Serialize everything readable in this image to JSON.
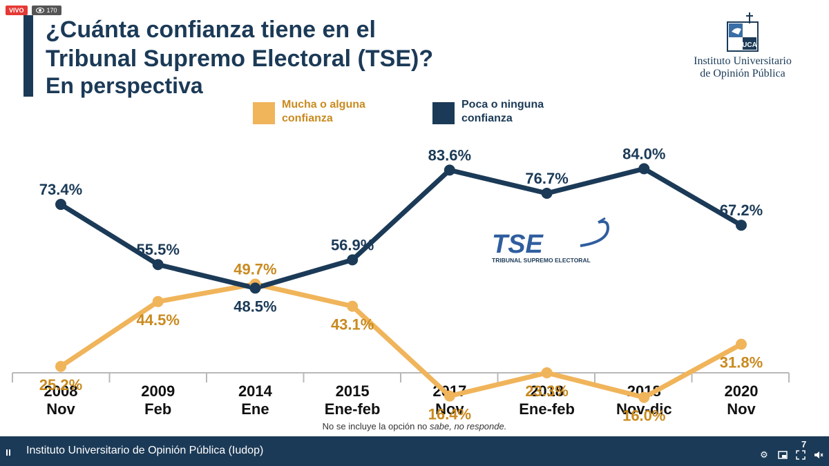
{
  "live": {
    "badge": "VIVO",
    "viewers": "170"
  },
  "header": {
    "title_line1": "¿Cuánta confianza tiene en el",
    "title_line2": "Tribunal Supremo Electoral (TSE)?",
    "subtitle": "En perspectiva"
  },
  "logo": {
    "initials": "UCA",
    "line1": "Instituto Universitario",
    "line2": "de Opinión Pública"
  },
  "tse_logo": {
    "letters": "TSE",
    "caption": "TRIBUNAL SUPREMO ELECTORAL"
  },
  "colors": {
    "dark": "#1b3a57",
    "orange": "#f0b45a",
    "orange_text": "#c98a1f",
    "axis": "#b8b8b8"
  },
  "chart_data": {
    "type": "line",
    "categories": [
      [
        "2008",
        "Nov"
      ],
      [
        "2009",
        "Feb"
      ],
      [
        "2014",
        "Ene"
      ],
      [
        "2015",
        "Ene-feb"
      ],
      [
        "2017",
        "Nov"
      ],
      [
        "2018",
        "Ene-feb"
      ],
      [
        "2018",
        "Nov-dic"
      ],
      [
        "2020",
        "Nov"
      ]
    ],
    "series": [
      {
        "name": "Mucha o alguna confianza",
        "color": "#f0b45a",
        "label_color": "#c98a1f",
        "values": [
          25.2,
          44.5,
          49.7,
          43.1,
          16.4,
          23.3,
          16.0,
          31.8
        ],
        "labels": [
          "25.2%",
          "44.5%",
          "49.7%",
          "43.1%",
          "16.4%",
          "23.3%",
          "16.0%",
          "31.8%"
        ],
        "label_pos": [
          "below",
          "below",
          "above",
          "below",
          "below",
          "below",
          "below",
          "below"
        ]
      },
      {
        "name": "Poca o ninguna confianza",
        "color": "#1b3a57",
        "label_color": "#1b3a57",
        "values": [
          73.4,
          55.5,
          48.5,
          56.9,
          83.6,
          76.7,
          84.0,
          67.2
        ],
        "labels": [
          "73.4%",
          "55.5%",
          "48.5%",
          "56.9%",
          "83.6%",
          "76.7%",
          "84.0%",
          "67.2%"
        ],
        "label_pos": [
          "above",
          "above",
          "below",
          "above",
          "above",
          "above",
          "above",
          "above"
        ]
      }
    ],
    "legend_position": "top-center",
    "grid": false
  },
  "footnote": {
    "pre": "No se incluye la opción no ",
    "italic": "sabe, no responde."
  },
  "bottom_bar": {
    "text": "Instituto Universitario de Opinión Pública (Iudop)",
    "number": "7"
  }
}
